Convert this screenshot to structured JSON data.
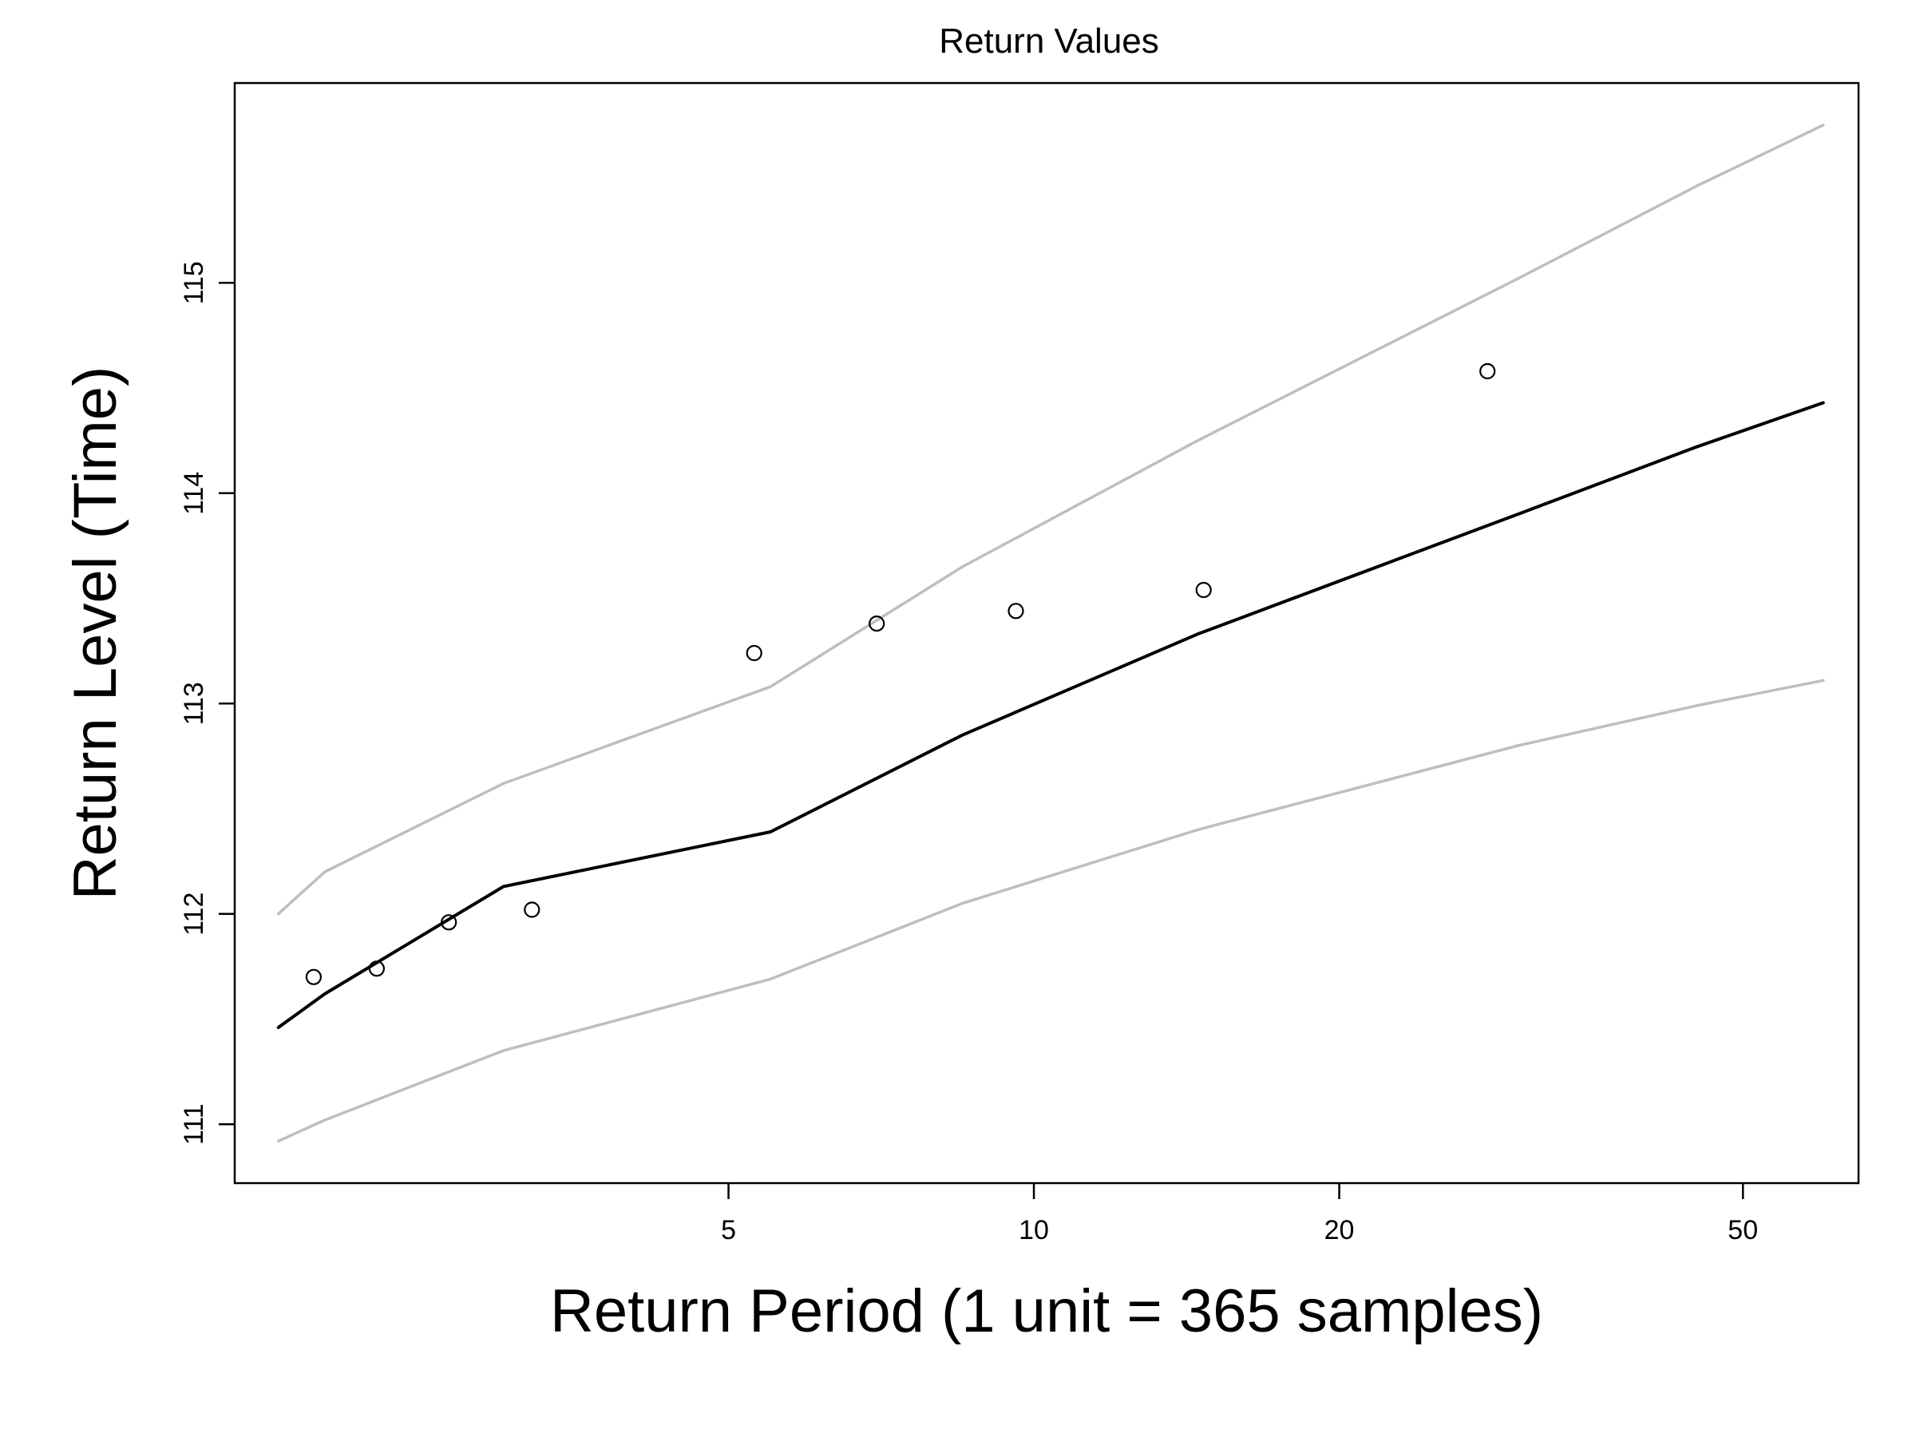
{
  "chart_data": {
    "type": "line",
    "title": "Return Values",
    "xlabel": "Return Period (1 unit = 365 samples)",
    "ylabel": "Return Level (Time)",
    "x_scale": "log",
    "xlim": [
      1.63,
      65
    ],
    "ylim": [
      110.72,
      115.95
    ],
    "x_ticks": [
      5,
      10,
      20,
      50
    ],
    "y_ticks": [
      111,
      112,
      113,
      114,
      115
    ],
    "grid": false,
    "legend": "none",
    "x": [
      1.8,
      2,
      3,
      5.5,
      8.5,
      14.5,
      30,
      45,
      60
    ],
    "series": [
      {
        "role": "estimate",
        "color": "#000000",
        "values": [
          111.46,
          111.62,
          112.13,
          112.39,
          112.85,
          113.33,
          113.9,
          114.22,
          114.43
        ]
      },
      {
        "role": "upper",
        "color": "#bebebe",
        "values": [
          112.0,
          112.2,
          112.62,
          113.08,
          113.65,
          114.25,
          115.02,
          115.46,
          115.75
        ]
      },
      {
        "role": "lower",
        "color": "#bebebe",
        "values": [
          110.92,
          111.02,
          111.35,
          111.69,
          112.05,
          112.4,
          112.8,
          112.99,
          113.11
        ]
      }
    ],
    "points": [
      {
        "x": 1.95,
        "y": 111.7
      },
      {
        "x": 2.25,
        "y": 111.74
      },
      {
        "x": 2.65,
        "y": 111.96
      },
      {
        "x": 3.2,
        "y": 112.02
      },
      {
        "x": 5.3,
        "y": 113.24
      },
      {
        "x": 7.0,
        "y": 113.38
      },
      {
        "x": 9.6,
        "y": 113.44
      },
      {
        "x": 14.7,
        "y": 113.54
      },
      {
        "x": 28.0,
        "y": 114.58
      }
    ]
  }
}
